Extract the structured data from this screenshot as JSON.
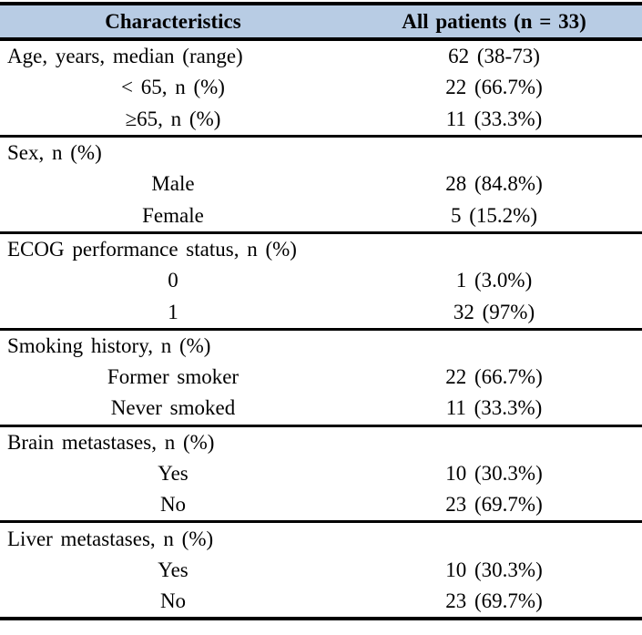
{
  "colors": {
    "page_bg": "#ffffff",
    "header_bg": "#b8cce4",
    "border": "#000000",
    "text": "#000000"
  },
  "table": {
    "header": {
      "characteristics": "Characteristics",
      "all_patients": "All patients (n = 33)"
    },
    "sections": [
      {
        "rows": [
          {
            "label": "Age, years, median (range)",
            "value": "62 (38-73)",
            "indent": false
          },
          {
            "label": "< 65, n (%)",
            "value": "22 (66.7%)",
            "indent": true
          },
          {
            "label": "≥65, n (%)",
            "value": "11 (33.3%)",
            "indent": true
          }
        ]
      },
      {
        "rows": [
          {
            "label": "Sex, n (%)",
            "value": "",
            "indent": false
          },
          {
            "label": "Male",
            "value": "28 (84.8%)",
            "indent": true
          },
          {
            "label": "Female",
            "value": "5 (15.2%)",
            "indent": true
          }
        ]
      },
      {
        "rows": [
          {
            "label": "ECOG performance status, n (%)",
            "value": "",
            "indent": false
          },
          {
            "label": "0",
            "value": "1 (3.0%)",
            "indent": true
          },
          {
            "label": "1",
            "value": "32 (97%)",
            "indent": true
          }
        ]
      },
      {
        "rows": [
          {
            "label": "Smoking history, n (%)",
            "value": "",
            "indent": false
          },
          {
            "label": "Former smoker",
            "value": "22 (66.7%)",
            "indent": true
          },
          {
            "label": "Never smoked",
            "value": "11 (33.3%)",
            "indent": true
          }
        ]
      },
      {
        "rows": [
          {
            "label": "Brain metastases, n (%)",
            "value": "",
            "indent": false
          },
          {
            "label": "Yes",
            "value": "10 (30.3%)",
            "indent": true
          },
          {
            "label": "No",
            "value": "23 (69.7%)",
            "indent": true
          }
        ]
      },
      {
        "rows": [
          {
            "label": "Liver metastases, n (%)",
            "value": "",
            "indent": false
          },
          {
            "label": "Yes",
            "value": "10 (30.3%)",
            "indent": true
          },
          {
            "label": "No",
            "value": "23 (69.7%)",
            "indent": true
          }
        ]
      }
    ]
  }
}
